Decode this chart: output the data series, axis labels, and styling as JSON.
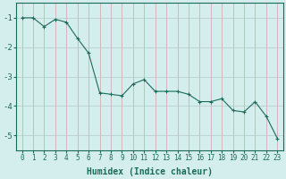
{
  "x": [
    0,
    1,
    2,
    3,
    4,
    5,
    6,
    7,
    8,
    9,
    10,
    11,
    12,
    13,
    14,
    15,
    16,
    17,
    18,
    19,
    20,
    21,
    22,
    23
  ],
  "y": [
    -1.0,
    -1.0,
    -1.3,
    -1.05,
    -1.15,
    -1.7,
    -2.2,
    -3.55,
    -3.6,
    -3.65,
    -3.25,
    -3.1,
    -3.5,
    -3.5,
    -3.5,
    -3.6,
    -3.85,
    -3.85,
    -3.75,
    -4.15,
    -4.2,
    -3.85,
    -4.35,
    -5.1
  ],
  "line_color": "#1a6b5a",
  "marker": "+",
  "marker_size": 3,
  "bg_color": "#d4eeee",
  "vgrid_color": "#d4a0a0",
  "hgrid_color": "#b8c8c8",
  "xlabel": "Humidex (Indice chaleur)",
  "xlim": [
    -0.5,
    23.5
  ],
  "ylim": [
    -5.5,
    -0.5
  ],
  "yticks": [
    -5,
    -4,
    -3,
    -2,
    -1
  ],
  "xticks": [
    0,
    1,
    2,
    3,
    4,
    5,
    6,
    7,
    8,
    9,
    10,
    11,
    12,
    13,
    14,
    15,
    16,
    17,
    18,
    19,
    20,
    21,
    22,
    23
  ],
  "tick_fontsize": 5.5,
  "xlabel_fontsize": 7,
  "linewidth": 0.8,
  "spine_color": "#1a6b5a"
}
